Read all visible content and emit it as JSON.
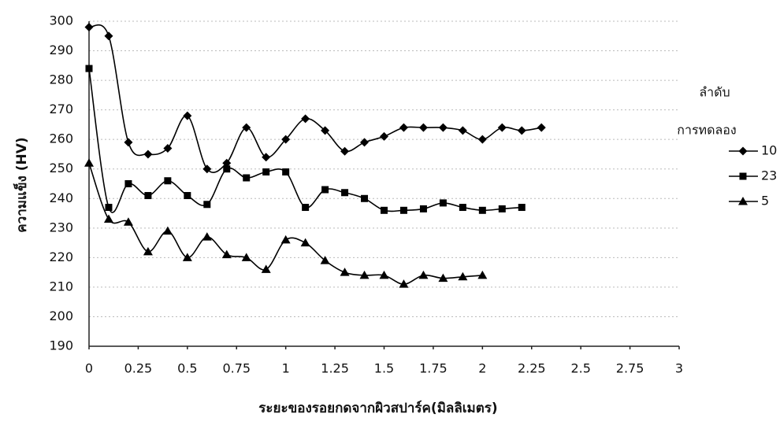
{
  "chart_data": {
    "type": "line",
    "xlabel": "ระยะของรอยกดจากผิวสปาร์ค(มิลลิเมตร)",
    "ylabel": "ความแข็ง (HV)",
    "legend_title": [
      "ลำดับ",
      "การทดลอง"
    ],
    "xlim": [
      0,
      3
    ],
    "xticks": [
      0,
      0.25,
      0.5,
      0.75,
      1,
      1.25,
      1.5,
      1.75,
      2,
      2.25,
      2.5,
      2.75,
      3
    ],
    "ylim": [
      190,
      300
    ],
    "yticks": [
      190,
      200,
      210,
      220,
      230,
      240,
      250,
      260,
      270,
      280,
      290,
      300
    ],
    "grid": true,
    "series": [
      {
        "name": "10",
        "color": "#000000",
        "marker": "diamond",
        "x": [
          0,
          0.1,
          0.2,
          0.3,
          0.4,
          0.5,
          0.6,
          0.7,
          0.8,
          0.9,
          1.0,
          1.1,
          1.2,
          1.3,
          1.4,
          1.5,
          1.6,
          1.7,
          1.8,
          1.9,
          2.0,
          2.1,
          2.2,
          2.3
        ],
        "values": [
          298,
          295,
          259,
          255,
          257,
          268,
          250,
          252,
          264,
          254,
          260,
          267,
          263,
          256,
          259,
          261,
          264,
          264,
          264,
          263,
          260,
          264,
          263,
          264
        ]
      },
      {
        "name": "23",
        "color": "#000000",
        "marker": "square",
        "x": [
          0,
          0.1,
          0.2,
          0.3,
          0.4,
          0.5,
          0.6,
          0.7,
          0.8,
          0.9,
          1.0,
          1.1,
          1.2,
          1.3,
          1.4,
          1.5,
          1.6,
          1.7,
          1.8,
          1.9,
          2.0,
          2.1,
          2.2
        ],
        "values": [
          284,
          237,
          245,
          241,
          246,
          241,
          238,
          250,
          247,
          249,
          249,
          237,
          243,
          242,
          240,
          236,
          236,
          236.5,
          238.5,
          237,
          236,
          236.5,
          237
        ]
      },
      {
        "name": "5",
        "color": "#000000",
        "marker": "triangle",
        "x": [
          0,
          0.1,
          0.2,
          0.3,
          0.4,
          0.5,
          0.6,
          0.7,
          0.8,
          0.9,
          1.0,
          1.1,
          1.2,
          1.3,
          1.4,
          1.5,
          1.6,
          1.7,
          1.8,
          1.9,
          2.0
        ],
        "values": [
          252,
          233,
          232,
          222,
          229,
          220,
          227,
          221,
          220,
          216,
          226,
          225,
          219,
          215,
          214,
          214,
          211,
          214,
          213,
          213.5,
          214
        ]
      }
    ]
  }
}
